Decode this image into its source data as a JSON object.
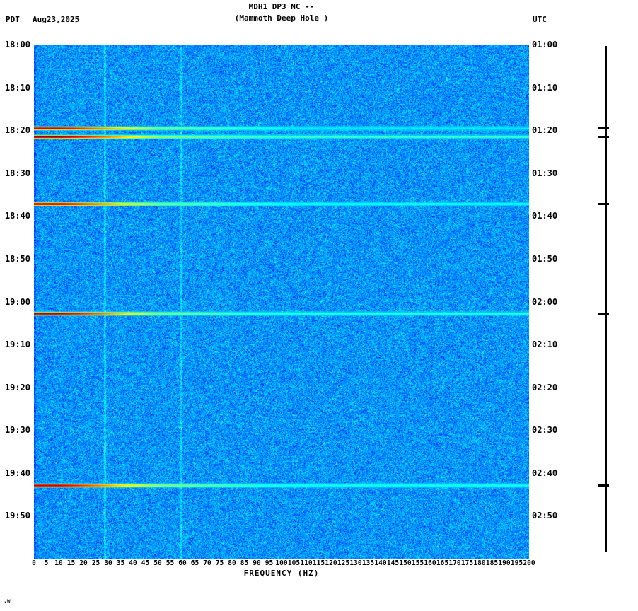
{
  "header": {
    "title": "MDH1 DP3 NC --",
    "subtitle": "(Mammoth Deep Hole )",
    "left_tz": "PDT",
    "date": "Aug23,2025",
    "right_tz": "UTC"
  },
  "footnote": ".w",
  "chart_data": {
    "type": "heatmap",
    "title": "MDH1 DP3 NC --",
    "subtitle": "(Mammoth Deep Hole )",
    "station": "MDH1 DP3 NC",
    "location": "Mammoth Deep Hole",
    "xlabel": "FREQUENCY (HZ)",
    "colormap": "jet",
    "background": "low-amplitude blue noise",
    "freq_range_hz": [
      0,
      200
    ],
    "freq_tick_step_hz": 5,
    "freq_ticks_hz": [
      0,
      5,
      10,
      15,
      20,
      25,
      30,
      35,
      40,
      45,
      50,
      55,
      60,
      65,
      70,
      75,
      80,
      85,
      90,
      95,
      100,
      105,
      110,
      115,
      120,
      125,
      130,
      135,
      140,
      145,
      150,
      155,
      160,
      165,
      170,
      175,
      180,
      185,
      190,
      195,
      200
    ],
    "time_span_min": 120,
    "tick_interval_min": 10,
    "time_axis_left": {
      "timezone": "PDT",
      "date": "Aug23,2025",
      "ticks": [
        "18:00",
        "18:10",
        "18:20",
        "18:30",
        "18:40",
        "18:50",
        "19:00",
        "19:10",
        "19:20",
        "19:30",
        "19:40",
        "19:50"
      ]
    },
    "time_axis_right": {
      "timezone": "UTC",
      "ticks": [
        "01:00",
        "01:10",
        "01:20",
        "01:30",
        "01:40",
        "01:50",
        "02:00",
        "02:10",
        "02:20",
        "02:30",
        "02:40",
        "02:50"
      ]
    },
    "persistent_tones_hz": [
      28.5,
      59.5
    ],
    "events": [
      {
        "label": "event-1",
        "time_pdt": "18:19",
        "time_utc": "01:19",
        "minutes_from_start": 19.5,
        "extent_hz": 100,
        "strength": 0.92,
        "band": 0.36
      },
      {
        "label": "event-2",
        "time_pdt": "18:21",
        "time_utc": "01:21",
        "minutes_from_start": 21.5,
        "extent_hz": 200,
        "strength": 1.0,
        "band": 0.44
      },
      {
        "label": "event-3",
        "time_pdt": "18:37",
        "time_utc": "01:37",
        "minutes_from_start": 37.2,
        "extent_hz": 200,
        "strength": 0.97,
        "band": 0.4
      },
      {
        "label": "event-4",
        "time_pdt": "19:03",
        "time_utc": "02:03",
        "minutes_from_start": 62.8,
        "extent_hz": 160,
        "strength": 0.97,
        "band": 0.42
      },
      {
        "label": "event-5",
        "time_pdt": "19:43",
        "time_utc": "02:43",
        "minutes_from_start": 102.8,
        "extent_hz": 200,
        "strength": 0.94,
        "band": 0.4
      }
    ]
  }
}
